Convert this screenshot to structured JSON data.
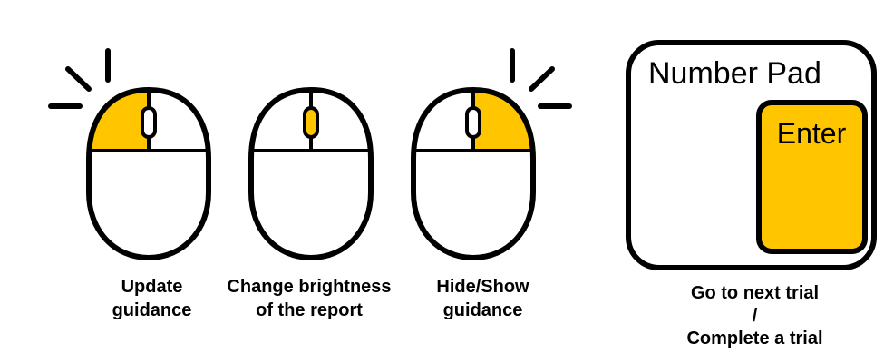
{
  "colors": {
    "highlight": "#ffc600",
    "stroke": "#000000",
    "background": "#ffffff"
  },
  "mice": [
    {
      "id": "left",
      "highlight": "left-button",
      "caption_lines": [
        "Update",
        "guidance"
      ]
    },
    {
      "id": "middle",
      "highlight": "scroll-wheel",
      "caption_lines": [
        "Change brightness",
        "of the report"
      ]
    },
    {
      "id": "right",
      "highlight": "right-button",
      "caption_lines": [
        "Hide/Show",
        "guidance"
      ]
    }
  ],
  "numpad": {
    "title": "Number Pad",
    "key_label": "Enter",
    "caption_lines": [
      "Go to next trial",
      "/",
      "Complete a trial"
    ]
  }
}
